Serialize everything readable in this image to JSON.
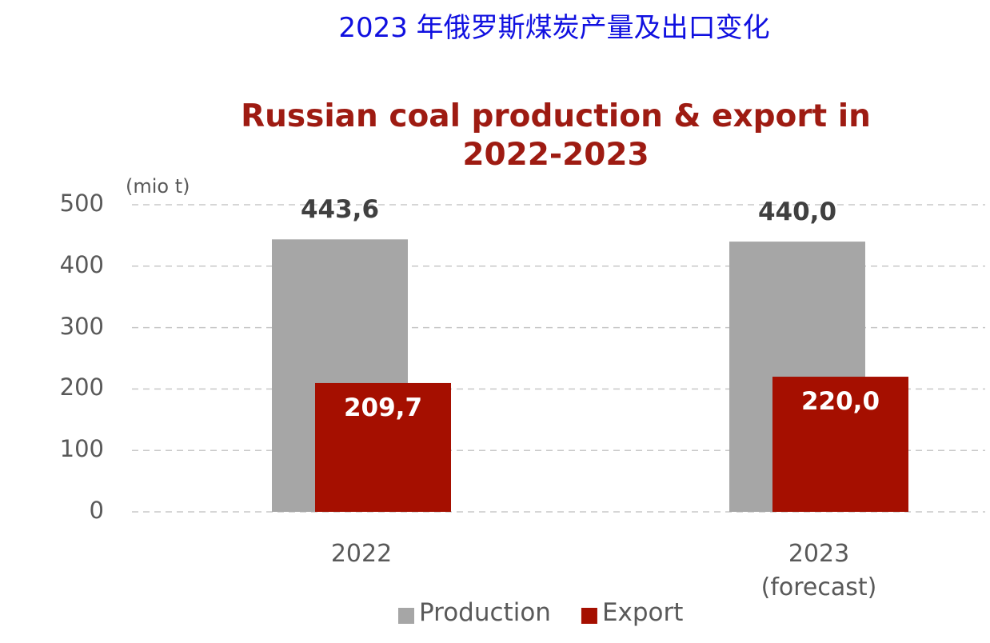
{
  "chart_data": {
    "type": "bar",
    "heading": "2023 年俄罗斯煤炭产量及出口变化",
    "title": "Russian coal production & export in 2022-2023",
    "ylabel": "(mio t)",
    "categories": [
      "2022",
      "2023 (forecast)"
    ],
    "series": [
      {
        "name": "Production",
        "color": "#a6a6a6",
        "values": [
          443.6,
          440.0
        ],
        "value_labels": [
          "443,6",
          "440,0"
        ]
      },
      {
        "name": "Export",
        "color": "#a50f00",
        "values": [
          209.7,
          220.0
        ],
        "value_labels": [
          "209,7",
          "220,0"
        ]
      }
    ],
    "ylim": [
      0,
      500
    ],
    "yticks": [
      0,
      100,
      200,
      300,
      400,
      500
    ],
    "grid": true,
    "legend": "bottom"
  }
}
